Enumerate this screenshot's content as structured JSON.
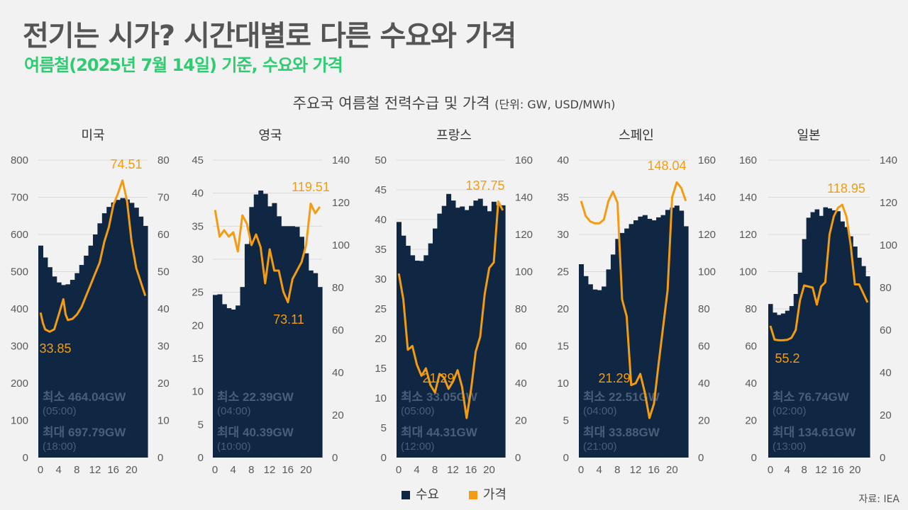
{
  "header": {
    "title": "전기는 시가? 시간대별로 다른 수요와 가격",
    "subtitle": "여름철(2025년 7월 14일) 기준, 수요와 가격"
  },
  "chart_title": "주요국 여름철 전력수급 및 가격",
  "chart_unit": "(단위: GW, USD/MWh)",
  "legend": [
    {
      "label": "수요",
      "color": "#0f2742"
    },
    {
      "label": "가격",
      "color": "#f39c12"
    }
  ],
  "source": "자료: IEA",
  "colors": {
    "demand": "#0f2742",
    "price": "#f39c12",
    "grid": "#d9d9d9"
  },
  "chart_data": [
    {
      "type": "bar+line",
      "title": "미국",
      "x_ticks": [
        "0",
        "4",
        "8",
        "12",
        "16",
        "20"
      ],
      "hours": [
        0,
        1,
        2,
        3,
        4,
        5,
        6,
        7,
        8,
        9,
        10,
        11,
        12,
        13,
        14,
        15,
        16,
        17,
        18,
        19,
        20,
        21,
        22,
        23
      ],
      "demand_axis": {
        "min": 0,
        "max": 800,
        "step": 100,
        "ticks": [
          "0",
          "100",
          "200",
          "300",
          "400",
          "500",
          "600",
          "700",
          "800"
        ]
      },
      "price_axis": {
        "min": 0,
        "max": 80,
        "step": 10,
        "ticks": [
          "0",
          "10",
          "20",
          "30",
          "40",
          "50",
          "60",
          "70",
          "80"
        ]
      },
      "demand": [
        570,
        538,
        512,
        487,
        471,
        464.04,
        466,
        478,
        496,
        518,
        543,
        570,
        600,
        630,
        657,
        674,
        686,
        693,
        697.79,
        694,
        685,
        672,
        648,
        623
      ],
      "price": [
        39,
        36.2,
        34.5,
        33.85,
        34.5,
        38.5,
        42.6,
        38.5,
        37,
        37.3,
        38.5,
        40.5,
        43.5,
        46.5,
        49.5,
        51,
        52.5,
        58,
        62,
        68,
        71,
        74.51,
        69,
        58,
        51,
        43.5
      ],
      "price_points_hours": [
        0,
        0.5,
        1,
        2,
        3,
        4,
        5,
        5.5,
        6,
        7,
        8,
        9,
        10,
        11,
        12,
        12.5,
        13,
        14,
        15,
        16,
        17,
        18,
        19,
        20,
        21,
        23
      ],
      "price_max_label": "74.51",
      "price_min_label": "33.85",
      "min_demand_label": "최소 464.04GW",
      "min_demand_time": "(05:00)",
      "max_demand_label": "최대 697.79GW",
      "max_demand_time": "(18:00)"
    },
    {
      "type": "bar+line",
      "title": "영국",
      "x_ticks": [
        "0",
        "4",
        "8",
        "12",
        "16",
        "20"
      ],
      "hours": [
        0,
        1,
        2,
        3,
        4,
        5,
        6,
        7,
        8,
        9,
        10,
        11,
        12,
        13,
        14,
        15,
        16,
        17,
        18,
        19,
        20,
        21,
        22,
        23
      ],
      "demand_axis": {
        "min": 0,
        "max": 45,
        "step": 5,
        "ticks": [
          "0",
          "5",
          "10",
          "15",
          "20",
          "25",
          "30",
          "35",
          "40",
          "45"
        ]
      },
      "price_axis": {
        "min": 0,
        "max": 140,
        "step": 20,
        "ticks": [
          "0",
          "20",
          "40",
          "60",
          "80",
          "100",
          "120",
          "140"
        ]
      },
      "demand": [
        24.6,
        24.7,
        23.2,
        22.6,
        22.39,
        23,
        25.8,
        32.3,
        37.9,
        39.8,
        40.39,
        39.9,
        38,
        38.5,
        36.5,
        35,
        35,
        35,
        34.9,
        33.4,
        30.9,
        28.3,
        27.9,
        25.8
      ],
      "price": [
        116.5,
        104,
        107,
        104,
        106,
        97,
        114,
        110,
        100,
        105,
        99,
        82,
        98,
        88,
        88,
        78,
        73.11,
        84,
        88,
        92,
        100,
        119.51,
        115,
        118
      ],
      "price_points_hours": [
        0,
        1,
        2,
        3,
        4,
        5,
        6,
        7,
        8,
        9,
        10,
        11,
        12,
        13,
        14,
        15,
        16,
        17,
        18,
        19,
        20,
        21,
        22,
        23
      ],
      "price_max_label": "119.51",
      "price_min_label": "73.11",
      "min_demand_label": "최소 22.39GW",
      "min_demand_time": "(04:00)",
      "max_demand_label": "최대 40.39GW",
      "max_demand_time": "(10:00)"
    },
    {
      "type": "bar+line",
      "title": "프랑스",
      "x_ticks": [
        "0",
        "4",
        "8",
        "12",
        "16",
        "20"
      ],
      "hours": [
        0,
        1,
        2,
        3,
        4,
        5,
        6,
        7,
        8,
        9,
        10,
        11,
        12,
        13,
        14,
        15,
        16,
        17,
        18,
        19,
        20,
        21,
        22,
        23
      ],
      "demand_axis": {
        "min": 0,
        "max": 50,
        "step": 5,
        "ticks": [
          "0",
          "5",
          "10",
          "15",
          "20",
          "25",
          "30",
          "35",
          "40",
          "45",
          "50"
        ]
      },
      "price_axis": {
        "min": 0,
        "max": 160,
        "step": 20,
        "ticks": [
          "0",
          "20",
          "40",
          "60",
          "80",
          "100",
          "120",
          "140",
          "160"
        ]
      },
      "demand": [
        39.6,
        37.3,
        35.6,
        34,
        33.1,
        33.05,
        34,
        36,
        38.5,
        41,
        42.3,
        44.31,
        43.2,
        42,
        42.2,
        41.6,
        42.3,
        43.2,
        43.5,
        42.3,
        41.4,
        43,
        42.4,
        42.4
      ],
      "price": [
        99,
        85,
        58,
        60,
        50,
        44,
        48,
        39,
        35,
        45,
        43,
        37,
        41,
        47,
        38,
        21.29,
        37,
        57,
        65,
        88,
        102,
        105,
        137.75,
        133
      ],
      "price_points_hours": [
        0,
        1,
        2,
        3,
        4,
        5,
        6,
        7,
        8,
        9,
        10,
        11,
        12,
        13,
        14,
        15,
        16,
        17,
        18,
        19,
        20,
        21,
        22,
        23
      ],
      "price_max_label": "137.75",
      "price_min_label": "21.29",
      "min_demand_label": "최소 33.05GW",
      "min_demand_time": "(05:00)",
      "max_demand_label": "최대 44.31GW",
      "max_demand_time": "(12:00)"
    },
    {
      "type": "bar+line",
      "title": "스페인",
      "x_ticks": [
        "0",
        "4",
        "8",
        "12",
        "16",
        "20"
      ],
      "hours": [
        0,
        1,
        2,
        3,
        4,
        5,
        6,
        7,
        8,
        9,
        10,
        11,
        12,
        13,
        14,
        15,
        16,
        17,
        18,
        19,
        20,
        21,
        22,
        23
      ],
      "demand_axis": {
        "min": 0,
        "max": 40,
        "step": 5,
        "ticks": [
          "0",
          "5",
          "10",
          "15",
          "20",
          "25",
          "30",
          "35",
          "40"
        ]
      },
      "price_axis": {
        "min": 0,
        "max": 160,
        "step": 20,
        "ticks": [
          "0",
          "20",
          "40",
          "60",
          "80",
          "100",
          "120",
          "140",
          "160"
        ]
      },
      "demand": [
        26,
        24.4,
        23.3,
        22.6,
        22.51,
        23,
        25.3,
        27.3,
        29.4,
        30.2,
        30.8,
        31.4,
        31.9,
        32.4,
        32.6,
        32.1,
        31.9,
        32.3,
        32.6,
        33.3,
        33.6,
        33.88,
        33.2,
        31.1
      ],
      "price": [
        138,
        130,
        127,
        126,
        126,
        128,
        138,
        143,
        137,
        85,
        76,
        39,
        40,
        45,
        35,
        21.29,
        29,
        50,
        70,
        90,
        140,
        148.04,
        145,
        138
      ],
      "price_points_hours": [
        0,
        1,
        2,
        3,
        4,
        5,
        6,
        7,
        8,
        9,
        10,
        11,
        12,
        13,
        14,
        15,
        16,
        17,
        18,
        19,
        20,
        21,
        22,
        23
      ],
      "price_max_label": "148.04",
      "price_min_label": "21.29",
      "min_demand_label": "최소 22.51GW",
      "min_demand_time": "(04:00)",
      "max_demand_label": "최대 33.88GW",
      "max_demand_time": "(21:00)"
    },
    {
      "type": "bar+line",
      "title": "일본",
      "x_ticks": [
        "0",
        "4",
        "8",
        "12",
        "16",
        "20"
      ],
      "hours": [
        0,
        1,
        2,
        3,
        4,
        5,
        6,
        7,
        8,
        9,
        10,
        11,
        12,
        13,
        14,
        15,
        16,
        17,
        18,
        19,
        20,
        21,
        22,
        23
      ],
      "demand_axis": {
        "min": 0,
        "max": 160,
        "step": 20,
        "ticks": [
          "0",
          "20",
          "40",
          "60",
          "80",
          "100",
          "120",
          "140",
          "160"
        ]
      },
      "price_axis": {
        "min": 0,
        "max": 140,
        "step": 20,
        "ticks": [
          "0",
          "20",
          "40",
          "60",
          "80",
          "100",
          "120",
          "140"
        ]
      },
      "demand": [
        82.6,
        78,
        76.74,
        77.5,
        79,
        81.5,
        88,
        99.5,
        117.5,
        129,
        132,
        133.5,
        130,
        134.61,
        134,
        133,
        132.5,
        127,
        124,
        119,
        113.5,
        107.5,
        103,
        97.5
      ],
      "price": [
        62,
        55.5,
        55.2,
        55.2,
        55.4,
        56.4,
        60,
        74,
        81,
        80.5,
        80,
        72,
        80.5,
        82.5,
        105,
        113.5,
        117.5,
        118.95,
        113.5,
        100,
        81.5,
        81.5,
        73
      ],
      "price_points_hours": [
        0,
        1,
        2,
        3,
        4,
        5,
        6,
        7,
        8,
        9,
        10,
        11,
        12,
        13,
        14,
        15,
        16,
        17,
        18,
        19,
        20,
        21,
        23
      ],
      "price_max_label": "118.95",
      "price_min_label": "55.2",
      "min_demand_label": "최소 76.74GW",
      "min_demand_time": "(02:00)",
      "max_demand_label": "최대 134.61GW",
      "max_demand_time": "(13:00)"
    }
  ]
}
